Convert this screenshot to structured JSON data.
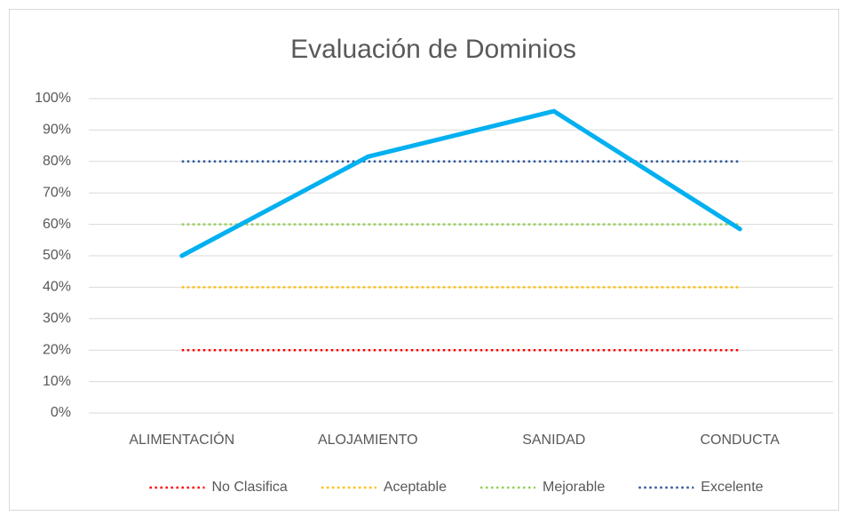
{
  "chart_data": {
    "type": "line",
    "title": "Evaluación de Dominios",
    "categories": [
      "ALIMENTACIÓN",
      "ALOJAMIENTO",
      "SANIDAD",
      "CONDUCTA"
    ],
    "series": [
      {
        "color": "#00b0f0",
        "values": [
          50,
          81.5,
          96,
          58.5
        ]
      },
      {
        "name": "No Clasifica",
        "color": "#ff0000",
        "line_style": "dotted",
        "values": [
          20,
          20,
          20,
          20
        ]
      },
      {
        "name": "Aceptable",
        "color": "#ffc000",
        "line_style": "dotted",
        "values": [
          40,
          40,
          40,
          40
        ]
      },
      {
        "name": "Mejorable",
        "color": "#92d050",
        "line_style": "dotted",
        "values": [
          60,
          60,
          60,
          60
        ]
      },
      {
        "name": "Excelente",
        "color": "#2f5597",
        "line_style": "dotted",
        "values": [
          80,
          80,
          80,
          80
        ]
      }
    ],
    "ylim": [
      0,
      100
    ],
    "yticks": [
      {
        "value": 0,
        "label": "0%"
      },
      {
        "value": 10,
        "label": "10%"
      },
      {
        "value": 20,
        "label": "20%"
      },
      {
        "value": 30,
        "label": "30%"
      },
      {
        "value": 40,
        "label": "40%"
      },
      {
        "value": 50,
        "label": "50%"
      },
      {
        "value": 60,
        "label": "60%"
      },
      {
        "value": 70,
        "label": "70%"
      },
      {
        "value": 80,
        "label": "80%"
      },
      {
        "value": 90,
        "label": "90%"
      },
      {
        "value": 100,
        "label": "100%"
      }
    ],
    "grid": true,
    "legend": "bottom"
  }
}
